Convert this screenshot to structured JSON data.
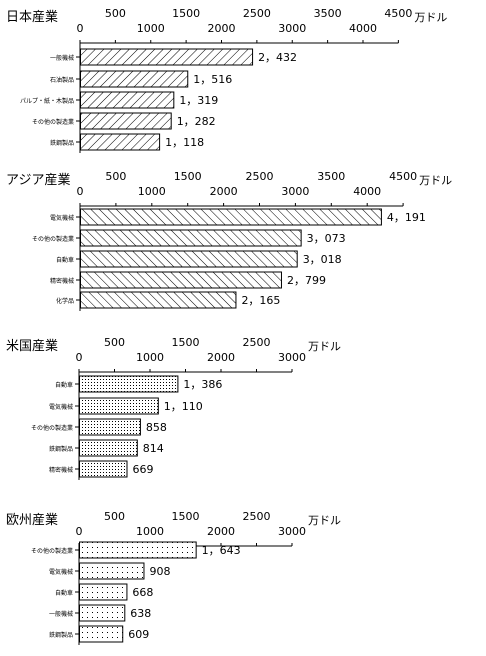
{
  "chart_data": [
    {
      "type": "bar",
      "title": "日本産業",
      "unit": "万ドル",
      "xlim": [
        0,
        4500
      ],
      "ticks_top": [
        "500",
        "1500",
        "2500",
        "3500",
        "4500"
      ],
      "ticks_bottom": [
        "0",
        "1000",
        "2000",
        "3000",
        "4000"
      ],
      "pattern": "hatch",
      "bars": [
        {
          "label": "一般機械",
          "value": 2432,
          "display": "2，432"
        },
        {
          "label": "石油製品",
          "value": 1516,
          "display": "1，516"
        },
        {
          "label": "パルプ・紙・木製品",
          "value": 1319,
          "display": "1，319"
        },
        {
          "label": "その他の製造業",
          "value": 1282,
          "display": "1，282"
        },
        {
          "label": "鉄鋼製品",
          "value": 1118,
          "display": "1，118"
        }
      ]
    },
    {
      "type": "bar",
      "title": "アジア産業",
      "unit": "万ドル",
      "xlim": [
        0,
        4500
      ],
      "ticks_top": [
        "500",
        "1500",
        "2500",
        "3500",
        "4500"
      ],
      "ticks_bottom": [
        "0",
        "1000",
        "2000",
        "3000",
        "4000"
      ],
      "pattern": "hatch-back",
      "bars": [
        {
          "label": "電気機械",
          "value": 4191,
          "display": "4，191"
        },
        {
          "label": "その他の製造業",
          "value": 3073,
          "display": "3，073"
        },
        {
          "label": "自動車",
          "value": 3018,
          "display": "3，018"
        },
        {
          "label": "精密機械",
          "value": 2799,
          "display": "2，799"
        },
        {
          "label": "化学品",
          "value": 2165,
          "display": "2，165"
        }
      ]
    },
    {
      "type": "bar",
      "title": "米国産業",
      "unit": "万ドル",
      "xlim": [
        0,
        3000
      ],
      "ticks_top": [
        "500",
        "1500",
        "2500"
      ],
      "ticks_bottom": [
        "0",
        "1000",
        "2000",
        "3000"
      ],
      "pattern": "dots-dense",
      "bars": [
        {
          "label": "自動車",
          "value": 1386,
          "display": "1，386"
        },
        {
          "label": "電気機械",
          "value": 1110,
          "display": "1，110"
        },
        {
          "label": "その他の製造業",
          "value": 858,
          "display": "858"
        },
        {
          "label": "鉄鋼製品",
          "value": 814,
          "display": "814"
        },
        {
          "label": "精密機械",
          "value": 669,
          "display": "669"
        }
      ]
    },
    {
      "type": "bar",
      "title": "欧州産業",
      "unit": "万ドル",
      "xlim": [
        0,
        3000
      ],
      "ticks_top": [
        "500",
        "1500",
        "2500"
      ],
      "ticks_bottom": [
        "0",
        "1000",
        "2000",
        "3000"
      ],
      "pattern": "dots-sparse",
      "bars": [
        {
          "label": "その他の製造業",
          "value": 1643,
          "display": "1，643"
        },
        {
          "label": "電気機械",
          "value": 908,
          "display": "908"
        },
        {
          "label": "自動車",
          "value": 668,
          "display": "668"
        },
        {
          "label": "一般機械",
          "value": 638,
          "display": "638"
        },
        {
          "label": "鉄鋼製品",
          "value": 609,
          "display": "609"
        }
      ]
    }
  ]
}
